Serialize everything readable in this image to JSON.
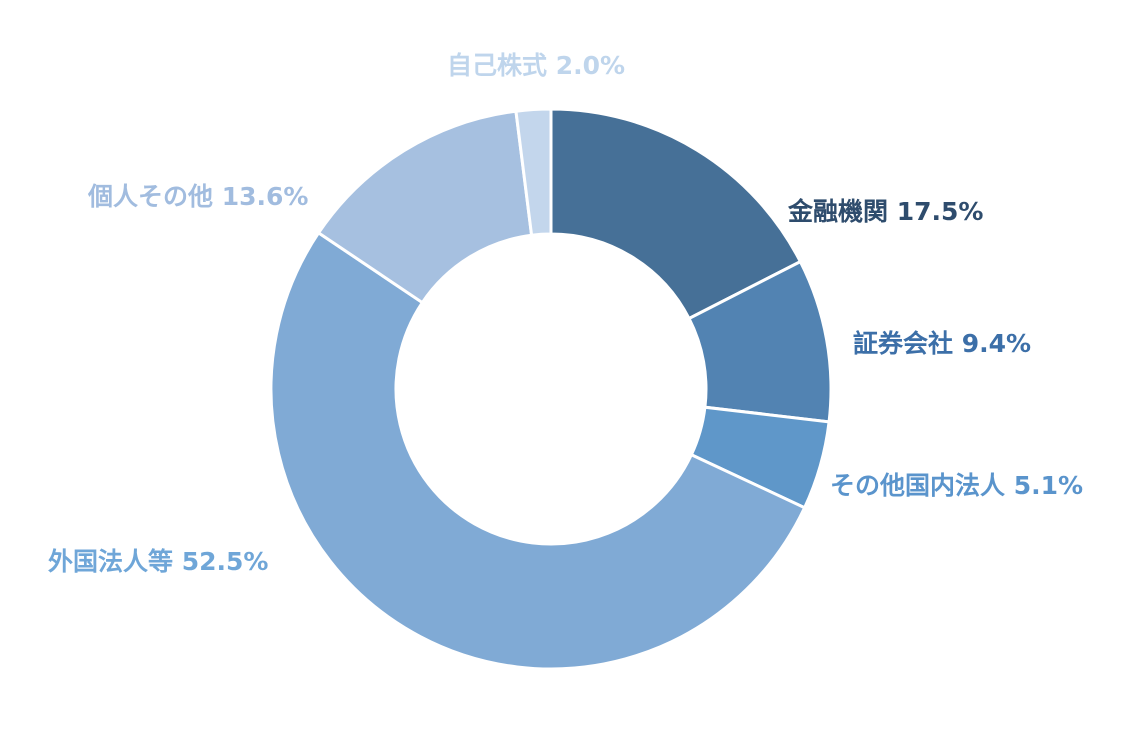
{
  "chart_data": {
    "type": "pie",
    "variant": "donut",
    "categories": [
      "金融機関",
      "証券会社",
      "その他国内法人",
      "外国法人等",
      "個人その他",
      "自己株式"
    ],
    "values": [
      17.5,
      9.4,
      5.1,
      52.5,
      13.6,
      2.0
    ],
    "unit": "%",
    "labels": [
      "金融機関 17.5%",
      "証券会社 9.4%",
      "その他国内法人 5.1%",
      "外国法人等 52.5%",
      "個人その他 13.6%",
      "自己株式 2.0%"
    ],
    "colors": [
      "#467097",
      "#5283b2",
      "#5f97c9",
      "#80aad5",
      "#a6c0e0",
      "#c3d6ec"
    ],
    "label_colors": [
      "#2e4c6d",
      "#3c6fa8",
      "#5a94cc",
      "#6fa6d8",
      "#a1bcdf",
      "#bfd5ec"
    ],
    "start_angle_deg": 0,
    "direction": "clockwise",
    "legend": "none"
  }
}
